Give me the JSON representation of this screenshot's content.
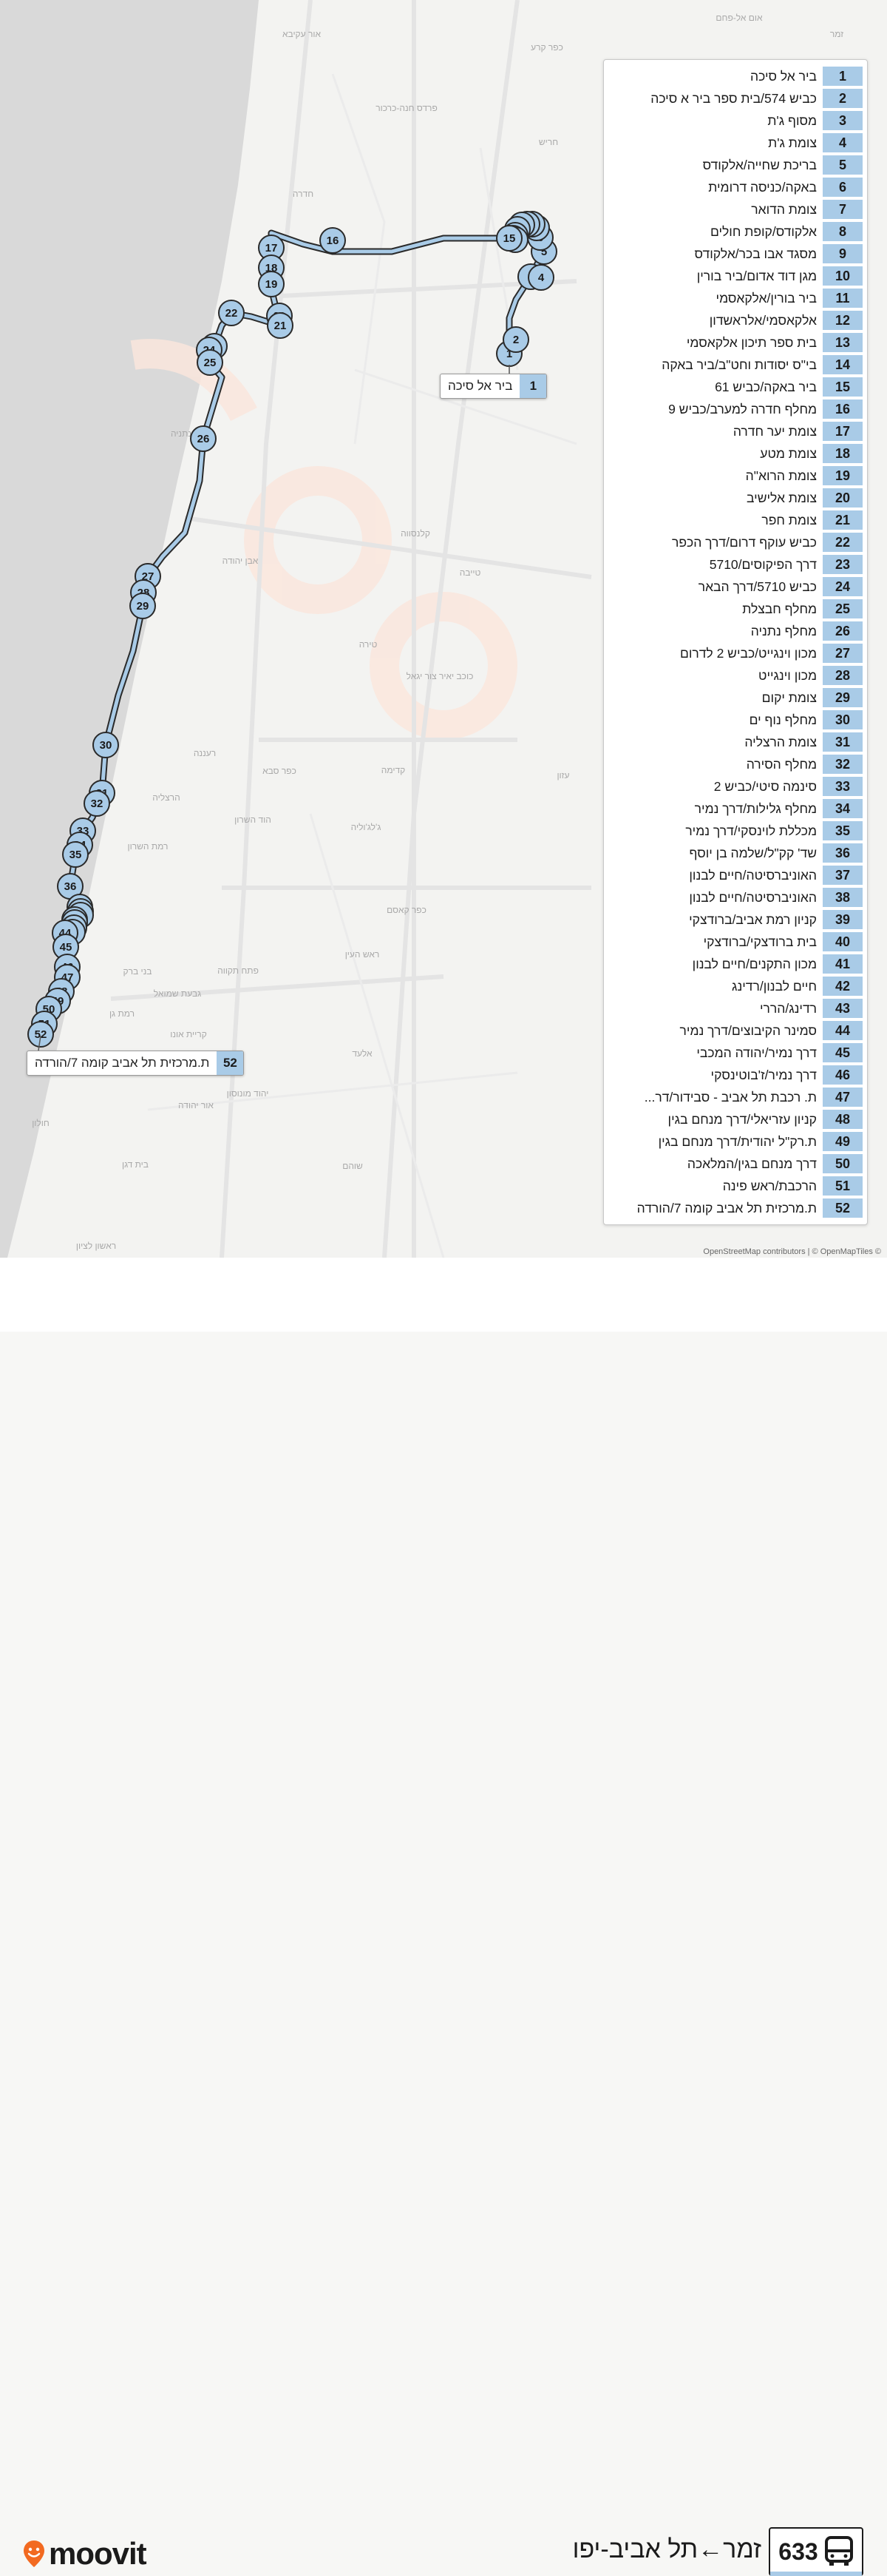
{
  "route": {
    "number": "633",
    "title": "זמר←תל אביב-יפו",
    "brand": "moovit",
    "accent_color": "#a9cbe7",
    "brand_color": "#f26a21",
    "icon": "bus-icon"
  },
  "attribution": "OpenStreetMap contributors | © OpenMapTiles ©",
  "towns": [
    "אום אל-פחם",
    "אור עקיבא",
    "כפר קרע",
    "פרדס חנה-כרכור",
    "חריש",
    "חדרה",
    "עין שמר",
    "זמר",
    "קלנסווה",
    "אבן יהודה",
    "טייבה",
    "נתניה",
    "כוכב יאיר צור יגאל",
    "טירה",
    "קדימה",
    "רעננה",
    "כפר סבא",
    "הרצליה",
    "הוד השרון",
    "ג'לג'וליה",
    "רמת השרון",
    "כפר קאסם",
    "ראש העין",
    "בני ברק",
    "פתח תקווה",
    "גבעת שמואל",
    "רמת גן",
    "קריית אונו",
    "אלעד",
    "יהוד מונוסון",
    "אור יהודה",
    "חולון",
    "בית דגן",
    "שוהם",
    "ראשון לציון",
    "עזון"
  ],
  "callouts": {
    "start": {
      "num": "1",
      "name": "ביר אל סיכה"
    },
    "end": {
      "num": "52",
      "name": "ת.מרכזית תל אביב קומה 7/הורדה"
    }
  },
  "stops": [
    {
      "num": "1",
      "name": "ביר אל סיכה"
    },
    {
      "num": "2",
      "name": "כביש 574/בית ספר ביר א סיכה"
    },
    {
      "num": "3",
      "name": "מסוף ג'ת"
    },
    {
      "num": "4",
      "name": "צומת ג'ת"
    },
    {
      "num": "5",
      "name": "בריכת שחייה/אלקודס"
    },
    {
      "num": "6",
      "name": "באקה/כניסה דרומית"
    },
    {
      "num": "7",
      "name": "צומת הדואר"
    },
    {
      "num": "8",
      "name": "אלקודס/קופת חולים"
    },
    {
      "num": "9",
      "name": "מסגד אבו בכר/אלקודס"
    },
    {
      "num": "10",
      "name": "מגן דוד אדום/ביר בורין"
    },
    {
      "num": "11",
      "name": "ביר בורין/אלקאסמי"
    },
    {
      "num": "12",
      "name": "אלקאסמי/אלראשדון"
    },
    {
      "num": "13",
      "name": "בית ספר תיכון אלקאסמי"
    },
    {
      "num": "14",
      "name": "בי\"ס יסודות וחט\"ב/ביר באקה"
    },
    {
      "num": "15",
      "name": "ביר באקה/כביש 61"
    },
    {
      "num": "16",
      "name": "מחלף חדרה למערב/כביש 9"
    },
    {
      "num": "17",
      "name": "צומת יער חדרה"
    },
    {
      "num": "18",
      "name": "צומת מטע"
    },
    {
      "num": "19",
      "name": "צומת הרוא\"ה"
    },
    {
      "num": "20",
      "name": "צומת אלישיב"
    },
    {
      "num": "21",
      "name": "צומת חפר"
    },
    {
      "num": "22",
      "name": "כביש עוקף דרום/דרך הכפר"
    },
    {
      "num": "23",
      "name": "דרך הפיקוסים/5710"
    },
    {
      "num": "24",
      "name": "כביש 5710/דרך הבאר"
    },
    {
      "num": "25",
      "name": "מחלף חבצלת"
    },
    {
      "num": "26",
      "name": "מחלף נתניה"
    },
    {
      "num": "27",
      "name": "מכון וינגייט/כביש 2 לדרום"
    },
    {
      "num": "28",
      "name": "מכון וינגייט"
    },
    {
      "num": "29",
      "name": "צומת יקום"
    },
    {
      "num": "30",
      "name": "מחלף נוף ים"
    },
    {
      "num": "31",
      "name": "צומת הרצליה"
    },
    {
      "num": "32",
      "name": "מחלף הסירה"
    },
    {
      "num": "33",
      "name": "סינמה סיטי/כביש 2"
    },
    {
      "num": "34",
      "name": "מחלף גלילות/דרך נמיר"
    },
    {
      "num": "35",
      "name": "מכללת לוינסקי/דרך נמיר"
    },
    {
      "num": "36",
      "name": "שד' קק\"ל/שלמה בן יוסף"
    },
    {
      "num": "37",
      "name": "האוניברסיטה/חיים לבנון"
    },
    {
      "num": "38",
      "name": "האוניברסיטה/חיים לבנון"
    },
    {
      "num": "39",
      "name": "קניון רמת אביב/ברודצקי"
    },
    {
      "num": "40",
      "name": "בית ברודצקי/ברודצקי"
    },
    {
      "num": "41",
      "name": "מכון התקנים/חיים לבנון"
    },
    {
      "num": "42",
      "name": "חיים לבנון/רדינג"
    },
    {
      "num": "43",
      "name": "רדינג/הררי"
    },
    {
      "num": "44",
      "name": "סמינר הקיבוצים/דרך נמיר"
    },
    {
      "num": "45",
      "name": "דרך נמיר/יהודה המכבי"
    },
    {
      "num": "46",
      "name": "דרך נמיר/ז'בוטינסקי"
    },
    {
      "num": "47",
      "name": "ת. רכבת תל אביב - סבידור/דר..."
    },
    {
      "num": "48",
      "name": "קניון עזריאלי/דרך מנחם בגין"
    },
    {
      "num": "49",
      "name": "ת.רק\"ל יהודית/דרך מנחם בגין"
    },
    {
      "num": "50",
      "name": "דרך מנחם בגין/המלאכה"
    },
    {
      "num": "51",
      "name": "הרכבת/ראש פינה"
    },
    {
      "num": "52",
      "name": "ת.מרכזית תל אביב קומה 7/הורדה"
    }
  ]
}
